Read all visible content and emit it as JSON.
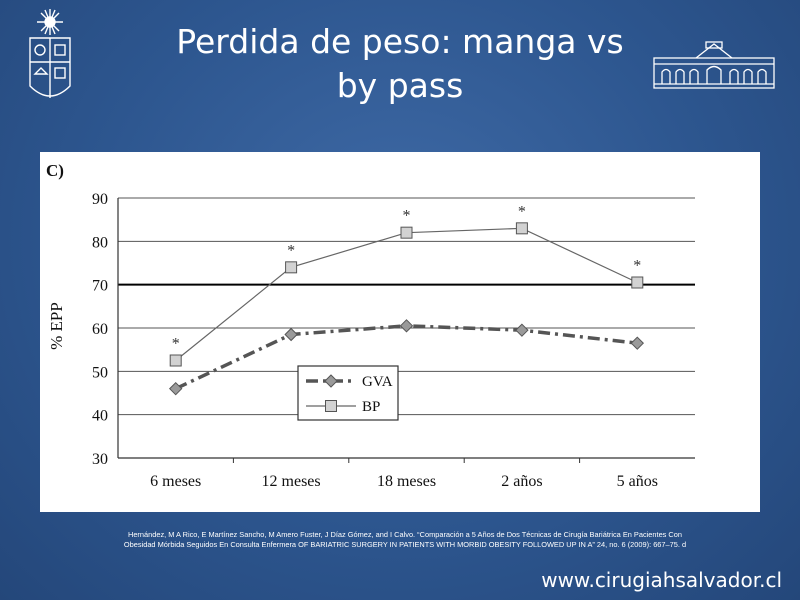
{
  "slide": {
    "title_line1": "Perdida de peso: manga vs",
    "title_line2": "by pass",
    "citation_line1": "Hernández, M A Rico, E Martínez Sancho, M Amero Fuster, J Díaz Gómez, and I Calvo. “Comparación a 5 Años de Dos Técnicas de Cirugía Bariátrica En Pacientes Con",
    "citation_line2": "Obesidad Mórbida Seguidos En Consulta Enfermera OF BARIATRIC SURGERY IN PATIENTS WITH MORBID OBESITY FOLLOWED UP IN A” 24, no. 6 (2009): 667–75. d",
    "website": "www.cirugiahsalvador.cl"
  },
  "chart_data": {
    "type": "line",
    "panel_label": "C)",
    "ylabel": "% EPP",
    "xlabel": "",
    "categories": [
      "6 meses",
      "12 meses",
      "18 meses",
      "2 años",
      "5 años"
    ],
    "ylim": [
      30,
      90
    ],
    "yticks": [
      30,
      40,
      50,
      60,
      70,
      80,
      90
    ],
    "grid": true,
    "reference_line": 70,
    "legend_position": "bottom-left",
    "series": [
      {
        "name": "GVA",
        "values": [
          46,
          58.5,
          60.5,
          59.5,
          56.5
        ],
        "style": "dash-dot",
        "marker": "diamond",
        "color": "#555555"
      },
      {
        "name": "BP",
        "values": [
          52.5,
          74,
          82,
          83,
          70.5
        ],
        "style": "solid",
        "marker": "square",
        "color": "#666666"
      }
    ],
    "annotations": [
      {
        "category": "6 meses",
        "text": "*"
      },
      {
        "category": "12 meses",
        "text": "*"
      },
      {
        "category": "18 meses",
        "text": "*"
      },
      {
        "category": "2 años",
        "text": "*"
      },
      {
        "category": "5 años",
        "text": "*"
      }
    ]
  }
}
